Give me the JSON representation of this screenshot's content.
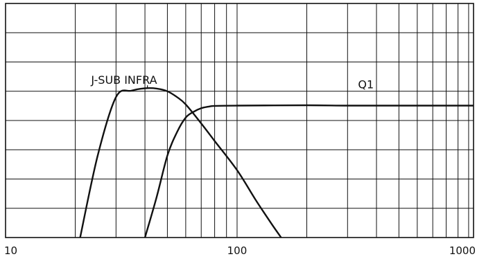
{
  "chart_data": {
    "type": "line",
    "xscale": "log",
    "xlim": [
      10,
      1000
    ],
    "ylim": [
      0,
      8
    ],
    "grid": true,
    "xticks": [
      "10",
      "100",
      "1000"
    ],
    "series": [
      {
        "name": "J-SUB INFRA",
        "x": [
          21,
          25,
          30,
          35,
          40,
          45,
          50,
          55,
          60,
          70,
          80,
          100,
          120,
          140,
          155
        ],
        "y": [
          0,
          2.8,
          4.8,
          5.02,
          5.1,
          5.09,
          5.0,
          4.8,
          4.55,
          3.9,
          3.3,
          2.3,
          1.3,
          0.5,
          0
        ]
      },
      {
        "name": "Q1",
        "x": [
          40,
          45,
          50,
          55,
          60,
          65,
          70,
          75,
          80,
          100,
          200,
          300,
          500,
          700,
          1000,
          1150
        ],
        "y": [
          0,
          1.4,
          2.8,
          3.6,
          4.1,
          4.3,
          4.42,
          4.47,
          4.5,
          4.51,
          4.52,
          4.51,
          4.51,
          4.51,
          4.51,
          4.51
        ]
      }
    ]
  }
}
